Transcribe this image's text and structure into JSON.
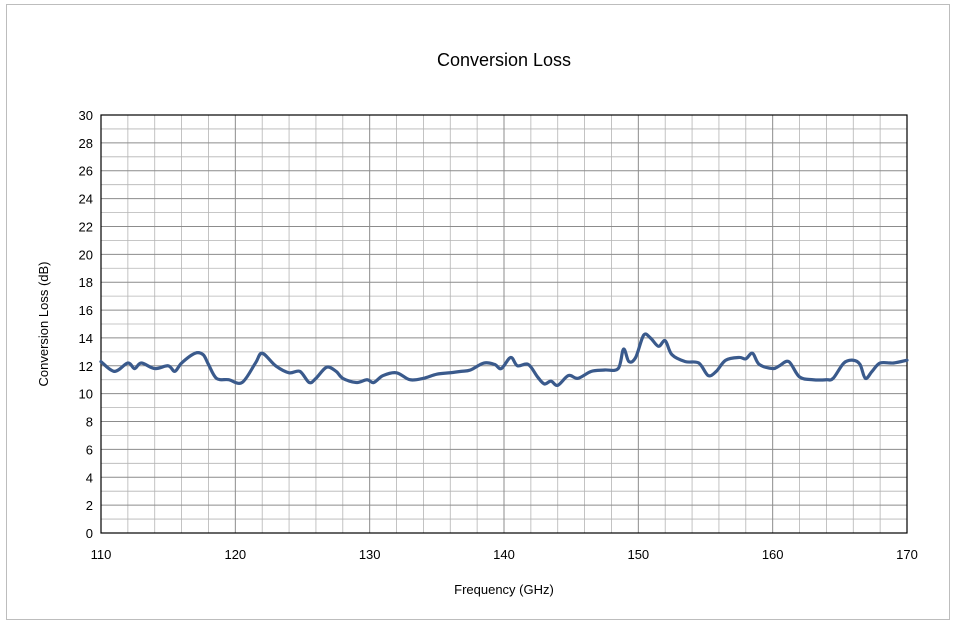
{
  "chart_data": {
    "type": "line",
    "title": "Conversion Loss",
    "xlabel": "Frequency (GHz)",
    "ylabel": "Conversion Loss (dB)",
    "xlim": [
      110,
      170
    ],
    "ylim": [
      0,
      30
    ],
    "x_major_ticks": [
      110,
      120,
      130,
      140,
      150,
      160,
      170
    ],
    "y_major_ticks": [
      0,
      2,
      4,
      6,
      8,
      10,
      12,
      14,
      16,
      18,
      20,
      22,
      24,
      26,
      28,
      30
    ],
    "x_minor_step": 2,
    "y_minor_step": 1,
    "grid": true,
    "legend": "none",
    "colors": {
      "line": "#3a5a8c",
      "grid": "#b4b4b4",
      "axes": "#000000"
    },
    "series": [
      {
        "x": [
          110,
          111,
          112,
          112.5,
          113,
          114,
          115,
          115.5,
          116,
          117,
          117.6,
          118,
          118.6,
          119.5,
          120.5,
          121.5,
          122,
          123,
          124,
          124.8,
          125.5,
          126,
          126.8,
          127.5,
          128,
          129,
          129.8,
          130.3,
          131,
          132,
          133,
          134,
          135,
          136,
          136.8,
          137.5,
          138.5,
          139.3,
          139.8,
          140.5,
          141,
          141.8,
          142.5,
          143,
          143.5,
          144,
          144.8,
          145.5,
          146.5,
          147.5,
          148.5,
          148.9,
          149.3,
          149.8,
          150.4,
          150.9,
          151.5,
          152,
          152.5,
          153.5,
          154.5,
          155.2,
          155.8,
          156.5,
          157.5,
          158,
          158.5,
          159,
          160,
          160.5,
          161.2,
          162,
          163,
          164,
          164.5,
          165.3,
          166,
          166.5,
          166.9,
          167.4,
          168,
          169,
          170
        ],
        "y": [
          12.3,
          11.6,
          12.2,
          11.8,
          12.2,
          11.8,
          12.0,
          11.6,
          12.2,
          12.9,
          12.8,
          12.1,
          11.1,
          11.0,
          10.8,
          12.2,
          12.9,
          12.0,
          11.5,
          11.6,
          10.8,
          11.1,
          11.9,
          11.6,
          11.1,
          10.8,
          11.0,
          10.8,
          11.3,
          11.5,
          11.0,
          11.1,
          11.4,
          11.5,
          11.6,
          11.7,
          12.2,
          12.1,
          11.8,
          12.6,
          12.0,
          12.1,
          11.2,
          10.7,
          10.9,
          10.6,
          11.3,
          11.1,
          11.6,
          11.7,
          11.8,
          13.2,
          12.3,
          12.6,
          14.2,
          14.0,
          13.4,
          13.8,
          12.8,
          12.3,
          12.2,
          11.3,
          11.6,
          12.4,
          12.6,
          12.5,
          12.9,
          12.1,
          11.8,
          12.0,
          12.3,
          11.2,
          11.0,
          11.0,
          11.1,
          12.2,
          12.4,
          12.1,
          11.1,
          11.6,
          12.2,
          12.2,
          12.4
        ]
      }
    ]
  }
}
